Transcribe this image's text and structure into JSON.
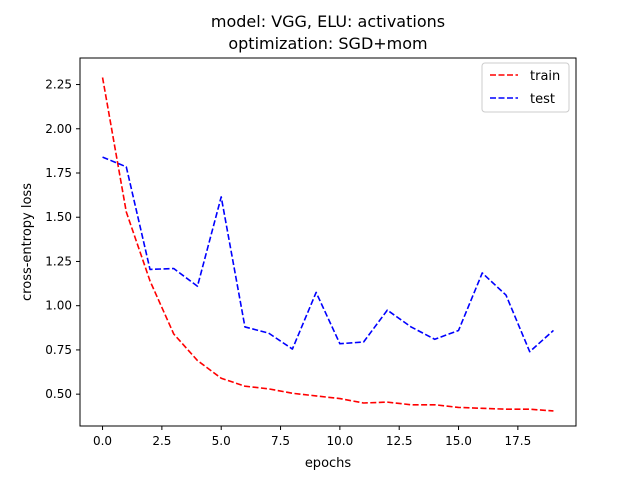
{
  "chart_data": {
    "type": "line",
    "title_line1": "model: VGG, ELU: activations",
    "title_line2": "optimization: SGD+mom",
    "xlabel": "epochs",
    "ylabel": "cross-entropy loss",
    "xlim": [
      -0.95,
      19.95
    ],
    "ylim": [
      0.32,
      2.4
    ],
    "x": [
      0,
      1,
      2,
      3,
      4,
      5,
      6,
      7,
      8,
      9,
      10,
      11,
      12,
      13,
      14,
      15,
      16,
      17,
      18,
      19
    ],
    "x_ticks": [
      0.0,
      2.5,
      5.0,
      7.5,
      10.0,
      12.5,
      15.0,
      17.5
    ],
    "x_tick_labels": [
      "0.0",
      "2.5",
      "5.0",
      "7.5",
      "10.0",
      "12.5",
      "15.0",
      "17.5"
    ],
    "y_ticks": [
      0.5,
      0.75,
      1.0,
      1.25,
      1.5,
      1.75,
      2.0,
      2.25
    ],
    "y_tick_labels": [
      "0.50",
      "0.75",
      "1.00",
      "1.25",
      "1.50",
      "1.75",
      "2.00",
      "2.25"
    ],
    "grid": false,
    "legend_position": "top-right",
    "series": [
      {
        "name": "train",
        "color": "#ff0000",
        "linestyle": "dashed",
        "values": [
          2.29,
          1.53,
          1.14,
          0.84,
          0.69,
          0.59,
          0.545,
          0.53,
          0.505,
          0.49,
          0.475,
          0.45,
          0.455,
          0.44,
          0.44,
          0.425,
          0.42,
          0.415,
          0.415,
          0.405
        ]
      },
      {
        "name": "test",
        "color": "#0000ff",
        "linestyle": "dashed",
        "values": [
          1.84,
          1.785,
          1.205,
          1.21,
          1.11,
          1.615,
          0.88,
          0.845,
          0.755,
          1.075,
          0.785,
          0.795,
          0.975,
          0.88,
          0.81,
          0.86,
          1.185,
          1.06,
          0.74,
          0.86
        ]
      }
    ]
  }
}
